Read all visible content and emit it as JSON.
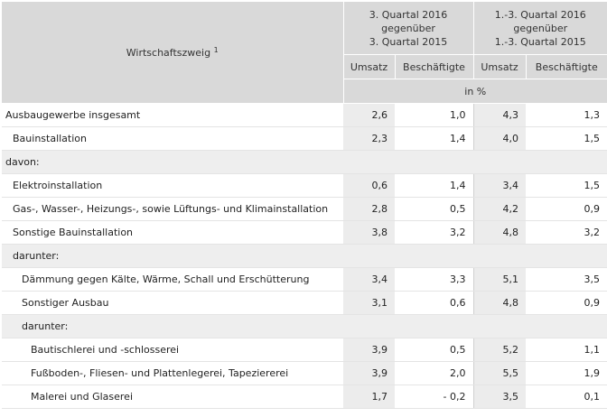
{
  "header": {
    "row_label": "Wirtschaftszweig",
    "footnote": "1",
    "period1": [
      "3. Quartal 2016",
      "gegenüber",
      "3. Quartal 2015"
    ],
    "period2": [
      "1.-3. Quartal 2016",
      "gegenüber",
      "1.-3. Quartal 2015"
    ],
    "col_umsatz": "Umsatz",
    "col_beschaeftigte": "Beschäftigte",
    "unit": "in %"
  },
  "rows": [
    {
      "label": "Ausbaugewerbe insgesamt",
      "values": [
        "2,6",
        "1,0",
        "4,3",
        "1,3"
      ]
    },
    {
      "label": "Bauinstallation",
      "values": [
        "2,3",
        "1,4",
        "4,0",
        "1,5"
      ]
    },
    {
      "label": "davon:"
    },
    {
      "label": "Elektroinstallation",
      "values": [
        "0,6",
        "1,4",
        "3,4",
        "1,5"
      ]
    },
    {
      "label": "Gas-, Wasser-, Heizungs-, sowie Lüftungs- und Klimainstallation",
      "values": [
        "2,8",
        "0,5",
        "4,2",
        "0,9"
      ]
    },
    {
      "label": "Sonstige Bauinstallation",
      "values": [
        "3,8",
        "3,2",
        "4,8",
        "3,2"
      ]
    },
    {
      "label": "darunter:"
    },
    {
      "label": "Dämmung gegen Kälte, Wärme, Schall und Erschütterung",
      "values": [
        "3,4",
        "3,3",
        "5,1",
        "3,5"
      ]
    },
    {
      "label": "Sonstiger Ausbau",
      "values": [
        "3,1",
        "0,6",
        "4,8",
        "0,9"
      ]
    },
    {
      "label": "darunter:"
    },
    {
      "label": "Bautischlerei und -schlosserei",
      "values": [
        "3,9",
        "0,5",
        "5,2",
        "1,1"
      ]
    },
    {
      "label": "Fußboden-, Fliesen- und Plattenlegerei, Tapeziererei",
      "values": [
        "3,9",
        "2,0",
        "5,5",
        "1,9"
      ]
    },
    {
      "label": "Malerei und Glaserei",
      "values": [
        "1,7",
        "- 0,2",
        "3,5",
        "0,1"
      ]
    }
  ]
}
